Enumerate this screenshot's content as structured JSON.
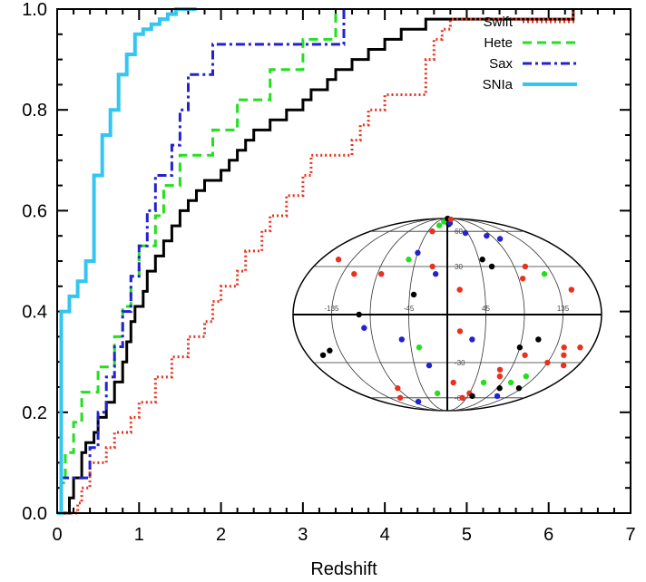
{
  "chart_data": {
    "type": "line",
    "xlabel": "Redshift",
    "ylabel": "",
    "xlim": [
      0,
      7
    ],
    "ylim": [
      0,
      1
    ],
    "x_ticks": [
      "0",
      "1",
      "2",
      "3",
      "4",
      "5",
      "6",
      "7"
    ],
    "y_ticks": [
      "0.0",
      "0.2",
      "0.4",
      "0.6",
      "0.8",
      "1.0"
    ],
    "legend_position": "top-right",
    "series": [
      {
        "name": "Swift",
        "color": "#e8321e",
        "dash": "dotted",
        "points": [
          [
            0.0,
            0.0
          ],
          [
            0.25,
            0.02
          ],
          [
            0.3,
            0.05
          ],
          [
            0.4,
            0.1
          ],
          [
            0.6,
            0.13
          ],
          [
            0.7,
            0.16
          ],
          [
            0.9,
            0.19
          ],
          [
            1.0,
            0.22
          ],
          [
            1.2,
            0.27
          ],
          [
            1.4,
            0.31
          ],
          [
            1.6,
            0.35
          ],
          [
            1.8,
            0.38
          ],
          [
            1.9,
            0.42
          ],
          [
            2.0,
            0.45
          ],
          [
            2.2,
            0.48
          ],
          [
            2.3,
            0.52
          ],
          [
            2.5,
            0.56
          ],
          [
            2.6,
            0.59
          ],
          [
            2.8,
            0.63
          ],
          [
            3.0,
            0.67
          ],
          [
            3.1,
            0.71
          ],
          [
            3.6,
            0.74
          ],
          [
            3.7,
            0.77
          ],
          [
            3.8,
            0.8
          ],
          [
            4.0,
            0.83
          ],
          [
            4.5,
            0.9
          ],
          [
            4.6,
            0.94
          ],
          [
            4.7,
            0.96
          ],
          [
            4.8,
            0.98
          ],
          [
            6.3,
            1.0
          ]
        ]
      },
      {
        "name": "Hete",
        "color": "#22e01e",
        "dash": "dashed",
        "points": [
          [
            0.0,
            0.0
          ],
          [
            0.05,
            0.06
          ],
          [
            0.1,
            0.12
          ],
          [
            0.2,
            0.18
          ],
          [
            0.3,
            0.24
          ],
          [
            0.5,
            0.29
          ],
          [
            0.7,
            0.35
          ],
          [
            0.8,
            0.41
          ],
          [
            0.9,
            0.47
          ],
          [
            1.0,
            0.53
          ],
          [
            1.2,
            0.59
          ],
          [
            1.3,
            0.65
          ],
          [
            1.5,
            0.71
          ],
          [
            1.9,
            0.76
          ],
          [
            2.2,
            0.82
          ],
          [
            2.6,
            0.88
          ],
          [
            3.0,
            0.94
          ],
          [
            3.4,
            1.0
          ]
        ]
      },
      {
        "name": "Sax",
        "color": "#2222d0",
        "dash": "dashdot",
        "points": [
          [
            0.0,
            0.0
          ],
          [
            0.05,
            0.07
          ],
          [
            0.4,
            0.13
          ],
          [
            0.5,
            0.2
          ],
          [
            0.6,
            0.27
          ],
          [
            0.7,
            0.33
          ],
          [
            0.8,
            0.4
          ],
          [
            0.9,
            0.47
          ],
          [
            1.0,
            0.53
          ],
          [
            1.1,
            0.6
          ],
          [
            1.2,
            0.67
          ],
          [
            1.4,
            0.73
          ],
          [
            1.5,
            0.8
          ],
          [
            1.6,
            0.87
          ],
          [
            1.9,
            0.93
          ],
          [
            3.5,
            1.0
          ]
        ]
      },
      {
        "name": "",
        "color": "#000000",
        "dash": "solid",
        "points": [
          [
            0.0,
            0.0
          ],
          [
            0.15,
            0.03
          ],
          [
            0.2,
            0.07
          ],
          [
            0.3,
            0.12
          ],
          [
            0.35,
            0.14
          ],
          [
            0.45,
            0.16
          ],
          [
            0.5,
            0.19
          ],
          [
            0.6,
            0.22
          ],
          [
            0.7,
            0.26
          ],
          [
            0.8,
            0.3
          ],
          [
            0.85,
            0.34
          ],
          [
            0.9,
            0.38
          ],
          [
            0.95,
            0.41
          ],
          [
            1.05,
            0.44
          ],
          [
            1.1,
            0.48
          ],
          [
            1.2,
            0.51
          ],
          [
            1.3,
            0.54
          ],
          [
            1.4,
            0.57
          ],
          [
            1.5,
            0.6
          ],
          [
            1.6,
            0.62
          ],
          [
            1.7,
            0.64
          ],
          [
            1.8,
            0.66
          ],
          [
            2.0,
            0.68
          ],
          [
            2.1,
            0.7
          ],
          [
            2.2,
            0.72
          ],
          [
            2.3,
            0.74
          ],
          [
            2.4,
            0.76
          ],
          [
            2.6,
            0.78
          ],
          [
            2.8,
            0.8
          ],
          [
            3.0,
            0.82
          ],
          [
            3.1,
            0.84
          ],
          [
            3.3,
            0.86
          ],
          [
            3.4,
            0.88
          ],
          [
            3.6,
            0.9
          ],
          [
            3.8,
            0.92
          ],
          [
            4.0,
            0.94
          ],
          [
            4.2,
            0.96
          ],
          [
            4.5,
            0.98
          ],
          [
            6.3,
            1.0
          ]
        ]
      },
      {
        "name": "SNIa",
        "color": "#33c6f2",
        "dash": "solid",
        "points": [
          [
            0.0,
            0.0
          ],
          [
            0.05,
            0.4
          ],
          [
            0.15,
            0.43
          ],
          [
            0.25,
            0.46
          ],
          [
            0.35,
            0.5
          ],
          [
            0.45,
            0.67
          ],
          [
            0.55,
            0.75
          ],
          [
            0.65,
            0.8
          ],
          [
            0.75,
            0.87
          ],
          [
            0.85,
            0.91
          ],
          [
            0.95,
            0.95
          ],
          [
            1.05,
            0.96
          ],
          [
            1.15,
            0.97
          ],
          [
            1.25,
            0.98
          ],
          [
            1.35,
            0.99
          ],
          [
            1.45,
            1.0
          ],
          [
            1.7,
            1.0
          ]
        ]
      }
    ]
  },
  "inset": {
    "type": "sky-map",
    "longitude_labels": [
      "-135",
      "-45",
      "45",
      "135"
    ],
    "latitude_labels": [
      "60",
      "30",
      "-30",
      "-60"
    ],
    "points": [
      {
        "lon": -155,
        "lat": 35,
        "color": "red"
      },
      {
        "lon": -120,
        "lat": 25,
        "color": "red"
      },
      {
        "lon": -148,
        "lat": -22,
        "color": "black"
      },
      {
        "lon": -160,
        "lat": -25,
        "color": "black"
      },
      {
        "lon": -103,
        "lat": 0,
        "color": "black"
      },
      {
        "lon": -98,
        "lat": -8,
        "color": "blue"
      },
      {
        "lon": -85,
        "lat": 25,
        "color": "red"
      },
      {
        "lon": -55,
        "lat": 35,
        "color": "green"
      },
      {
        "lon": -45,
        "lat": 40,
        "color": "blue"
      },
      {
        "lon": -35,
        "lat": 60,
        "color": "red"
      },
      {
        "lon": -25,
        "lat": 68,
        "color": "green"
      },
      {
        "lon": -15,
        "lat": 75,
        "color": "green"
      },
      {
        "lon": -40,
        "lat": 12,
        "color": "black"
      },
      {
        "lon": -55,
        "lat": -15,
        "color": "blue"
      },
      {
        "lon": -35,
        "lat": -20,
        "color": "green"
      },
      {
        "lon": -25,
        "lat": -32,
        "color": "blue"
      },
      {
        "lon": -20,
        "lat": 30,
        "color": "red"
      },
      {
        "lon": -15,
        "lat": 25,
        "color": "blue"
      },
      {
        "lon": 5,
        "lat": 70,
        "color": "black"
      },
      {
        "lon": 10,
        "lat": 88,
        "color": "black"
      },
      {
        "lon": 10,
        "lat": 72,
        "color": "blue"
      },
      {
        "lon": 15,
        "lat": 15,
        "color": "red"
      },
      {
        "lon": 30,
        "lat": 82,
        "color": "red"
      },
      {
        "lon": 40,
        "lat": 58,
        "color": "blue"
      },
      {
        "lon": 50,
        "lat": 35,
        "color": "black"
      },
      {
        "lon": 60,
        "lat": 30,
        "color": "black"
      },
      {
        "lon": 80,
        "lat": 55,
        "color": "blue"
      },
      {
        "lon": 100,
        "lat": 52,
        "color": "blue"
      },
      {
        "lon": 105,
        "lat": 30,
        "color": "red"
      },
      {
        "lon": 95,
        "lat": 22,
        "color": "red"
      },
      {
        "lon": 125,
        "lat": 25,
        "color": "green"
      },
      {
        "lon": 150,
        "lat": 15,
        "color": "red"
      },
      {
        "lon": -110,
        "lat": -60,
        "color": "red"
      },
      {
        "lon": -90,
        "lat": -50,
        "color": "red"
      },
      {
        "lon": -80,
        "lat": -65,
        "color": "blue"
      },
      {
        "lon": -20,
        "lat": -55,
        "color": "green"
      },
      {
        "lon": 10,
        "lat": -45,
        "color": "red"
      },
      {
        "lon": 15,
        "lat": -10,
        "color": "red"
      },
      {
        "lon": 30,
        "lat": -15,
        "color": "blue"
      },
      {
        "lon": 35,
        "lat": -60,
        "color": "red"
      },
      {
        "lon": 45,
        "lat": -55,
        "color": "red"
      },
      {
        "lon": 60,
        "lat": -45,
        "color": "green"
      },
      {
        "lon": 75,
        "lat": -35,
        "color": "red"
      },
      {
        "lon": 80,
        "lat": -40,
        "color": "red"
      },
      {
        "lon": 90,
        "lat": -20,
        "color": "black"
      },
      {
        "lon": 100,
        "lat": -25,
        "color": "red"
      },
      {
        "lon": 105,
        "lat": -45,
        "color": "green"
      },
      {
        "lon": 110,
        "lat": -58,
        "color": "blue"
      },
      {
        "lon": 120,
        "lat": -40,
        "color": "green"
      },
      {
        "lon": 130,
        "lat": -50,
        "color": "black"
      },
      {
        "lon": 135,
        "lat": -30,
        "color": "red"
      },
      {
        "lon": 145,
        "lat": -20,
        "color": "red"
      },
      {
        "lon": 150,
        "lat": -25,
        "color": "red"
      },
      {
        "lon": 160,
        "lat": -32,
        "color": "red"
      },
      {
        "lon": 165,
        "lat": -20,
        "color": "red"
      },
      {
        "lon": 110,
        "lat": -15,
        "color": "black"
      },
      {
        "lon": 95,
        "lat": -50,
        "color": "black"
      },
      {
        "lon": 55,
        "lat": -58,
        "color": "black"
      }
    ]
  }
}
